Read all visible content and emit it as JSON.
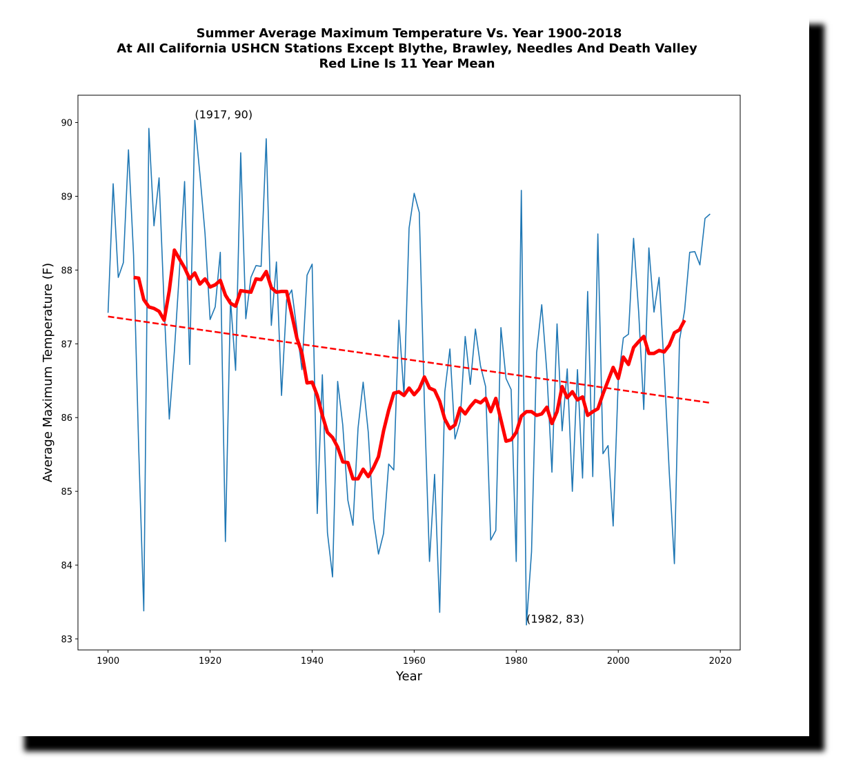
{
  "chart_data": {
    "type": "line",
    "title": [
      "Summer Average Maximum Temperature Vs. Year 1900-2018",
      "At All California USHCN Stations Except Blythe, Brawley, Needles And Death Valley",
      "Red Line Is 11 Year Mean"
    ],
    "xlabel": "Year",
    "ylabel": "Average Maximum Temperature (F)",
    "xlim": [
      1894.1,
      2023.9
    ],
    "ylim": [
      82.85,
      90.37
    ],
    "xticks": [
      1900,
      1920,
      1940,
      1960,
      1980,
      2000,
      2020
    ],
    "yticks": [
      83,
      84,
      85,
      86,
      87,
      88,
      89,
      90
    ],
    "series": [
      {
        "color": "#1f77b4",
        "linestyle": "solid",
        "x": [
          1900,
          1901,
          1902,
          1903,
          1904,
          1905,
          1906,
          1907,
          1908,
          1909,
          1910,
          1911,
          1912,
          1913,
          1914,
          1915,
          1916,
          1917,
          1918,
          1919,
          1920,
          1921,
          1922,
          1923,
          1924,
          1925,
          1926,
          1927,
          1928,
          1929,
          1930,
          1931,
          1932,
          1933,
          1934,
          1935,
          1936,
          1937,
          1938,
          1939,
          1940,
          1941,
          1942,
          1943,
          1944,
          1945,
          1946,
          1947,
          1948,
          1949,
          1950,
          1951,
          1952,
          1953,
          1954,
          1955,
          1956,
          1957,
          1958,
          1959,
          1960,
          1961,
          1962,
          1963,
          1964,
          1965,
          1966,
          1967,
          1968,
          1969,
          1970,
          1971,
          1972,
          1973,
          1974,
          1975,
          1976,
          1977,
          1978,
          1979,
          1980,
          1981,
          1982,
          1983,
          1984,
          1985,
          1986,
          1987,
          1988,
          1989,
          1990,
          1991,
          1992,
          1993,
          1994,
          1995,
          1996,
          1997,
          1998,
          1999,
          2000,
          2001,
          2002,
          2003,
          2004,
          2005,
          2006,
          2007,
          2008,
          2009,
          2010,
          2011,
          2012,
          2013,
          2014,
          2015,
          2016,
          2017,
          2018
        ],
        "values": [
          87.42,
          89.17,
          87.9,
          88.1,
          89.63,
          88.2,
          85.6,
          83.38,
          89.92,
          88.6,
          89.25,
          87.5,
          85.98,
          86.9,
          88.0,
          89.2,
          86.72,
          90.03,
          89.3,
          88.5,
          87.33,
          87.5,
          88.24,
          84.32,
          87.6,
          86.64,
          89.59,
          87.34,
          87.9,
          88.06,
          88.05,
          89.78,
          87.25,
          88.11,
          86.3,
          87.6,
          87.73,
          87.2,
          86.65,
          87.93,
          88.08,
          84.7,
          86.58,
          84.44,
          83.84,
          86.49,
          85.9,
          84.88,
          84.54,
          85.86,
          86.48,
          85.8,
          84.63,
          84.15,
          84.43,
          85.37,
          85.29,
          87.32,
          86.3,
          88.57,
          89.04,
          88.78,
          86.2,
          84.05,
          85.23,
          83.36,
          86.35,
          86.93,
          85.71,
          85.95,
          87.1,
          86.45,
          87.2,
          86.7,
          86.42,
          84.34,
          84.47,
          87.22,
          86.53,
          86.38,
          84.05,
          89.08,
          83.19,
          84.18,
          86.88,
          87.53,
          86.62,
          85.26,
          87.27,
          85.82,
          86.66,
          85.0,
          86.65,
          85.18,
          87.71,
          85.2,
          88.49,
          85.51,
          85.62,
          84.53,
          86.51,
          87.08,
          87.13,
          88.43,
          87.43,
          86.11,
          88.3,
          87.43,
          87.9,
          86.67,
          85.25,
          84.02,
          87.05,
          87.45,
          88.24,
          88.25,
          88.07,
          88.7,
          88.76
        ]
      },
      {
        "color": "#ff0000",
        "linestyle": "solid",
        "x": [
          1905,
          1906,
          1907,
          1908,
          1909,
          1910,
          1911,
          1912,
          1913,
          1914,
          1915,
          1916,
          1917,
          1918,
          1919,
          1920,
          1921,
          1922,
          1923,
          1924,
          1925,
          1926,
          1927,
          1928,
          1929,
          1930,
          1931,
          1932,
          1933,
          1934,
          1935,
          1936,
          1937,
          1938,
          1939,
          1940,
          1941,
          1942,
          1943,
          1944,
          1945,
          1946,
          1947,
          1948,
          1949,
          1950,
          1951,
          1952,
          1953,
          1954,
          1955,
          1956,
          1957,
          1958,
          1959,
          1960,
          1961,
          1962,
          1963,
          1964,
          1965,
          1966,
          1967,
          1968,
          1969,
          1970,
          1971,
          1972,
          1973,
          1974,
          1975,
          1976,
          1977,
          1978,
          1979,
          1980,
          1981,
          1982,
          1983,
          1984,
          1985,
          1986,
          1987,
          1988,
          1989,
          1990,
          1991,
          1992,
          1993,
          1994,
          1995,
          1996,
          1997,
          1998,
          1999,
          2000,
          2001,
          2002,
          2003,
          2004,
          2005,
          2006,
          2007,
          2008,
          2009,
          2010,
          2011,
          2012,
          2013
        ],
        "values": [
          87.9,
          87.89,
          87.6,
          87.5,
          87.48,
          87.44,
          87.32,
          87.72,
          88.27,
          88.15,
          88.03,
          87.88,
          87.96,
          87.81,
          87.88,
          87.77,
          87.8,
          87.86,
          87.66,
          87.55,
          87.51,
          87.72,
          87.71,
          87.7,
          87.88,
          87.87,
          87.98,
          87.76,
          87.7,
          87.71,
          87.71,
          87.4,
          87.08,
          86.87,
          86.47,
          86.48,
          86.3,
          86.03,
          85.8,
          85.73,
          85.6,
          85.4,
          85.39,
          85.17,
          85.17,
          85.3,
          85.2,
          85.32,
          85.47,
          85.82,
          86.1,
          86.33,
          86.35,
          86.3,
          86.4,
          86.31,
          86.39,
          86.55,
          86.4,
          86.37,
          86.22,
          85.98,
          85.85,
          85.9,
          86.13,
          86.05,
          86.15,
          86.23,
          86.2,
          86.26,
          86.08,
          86.26,
          85.97,
          85.68,
          85.7,
          85.8,
          86.02,
          86.08,
          86.08,
          86.03,
          86.05,
          86.14,
          85.92,
          86.08,
          86.42,
          86.27,
          86.35,
          86.24,
          86.28,
          86.03,
          86.08,
          86.12,
          86.32,
          86.5,
          86.68,
          86.53,
          86.82,
          86.72,
          86.95,
          87.03,
          87.1,
          86.87,
          86.87,
          86.91,
          86.89,
          86.98,
          87.15,
          87.19,
          87.32
        ]
      },
      {
        "color": "#ff0000",
        "linestyle": "dashed",
        "x": [
          1900,
          2018
        ],
        "values": [
          87.37,
          86.2
        ]
      }
    ],
    "annotations": [
      {
        "text": "(1917, 90)",
        "x": 1917,
        "y": 90.03
      },
      {
        "text": "(1982, 83)",
        "x": 1982,
        "y": 83.19
      }
    ]
  }
}
